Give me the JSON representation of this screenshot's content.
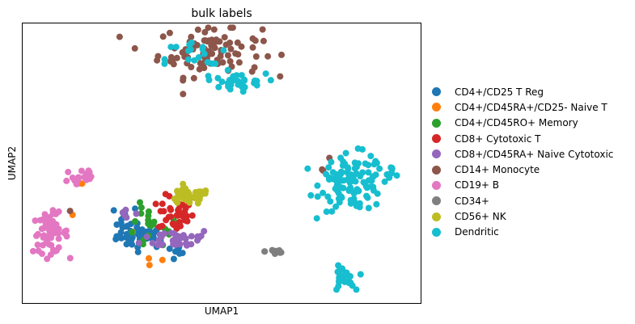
{
  "chart_data": {
    "type": "scatter",
    "title": "bulk labels",
    "xlabel": "UMAP1",
    "ylabel": "UMAP2",
    "grid": false,
    "xticks": "none",
    "yticks": "none",
    "xlim": [
      0,
      100
    ],
    "ylim": [
      0,
      100
    ],
    "legend_position": "right-outside",
    "series": [
      {
        "name": "CD4+/CD25 T Reg",
        "color": "#1f77b4",
        "clusters": [
          {
            "cx": 30,
            "cy": 24,
            "sx": 3.2,
            "sy": 2.2,
            "n": 45
          },
          {
            "cx": 26,
            "cy": 30,
            "sx": 1.5,
            "sy": 2.5,
            "n": 12
          },
          {
            "cx": 38,
            "cy": 18,
            "sx": 1.5,
            "sy": 1.5,
            "n": 8
          }
        ]
      },
      {
        "name": "CD4+/CD45RA+/CD25- Naive T",
        "color": "#ff7f0e",
        "clusters": [
          {
            "cx": 12.5,
            "cy": 31,
            "sx": 0.3,
            "sy": 0.3,
            "n": 1
          },
          {
            "cx": 33,
            "cy": 15,
            "sx": 1.2,
            "sy": 1.2,
            "n": 3
          },
          {
            "cx": 28,
            "cy": 25,
            "sx": 0.5,
            "sy": 0.5,
            "n": 1
          },
          {
            "cx": 14.5,
            "cy": 43,
            "sx": 0.4,
            "sy": 0.3,
            "n": 2
          }
        ]
      },
      {
        "name": "CD4+/CD45RO+ Memory",
        "color": "#2ca02c",
        "clusters": [
          {
            "cx": 32,
            "cy": 26,
            "sx": 4,
            "sy": 4,
            "n": 20
          },
          {
            "cx": 30,
            "cy": 34,
            "sx": 0.3,
            "sy": 0.3,
            "n": 1
          },
          {
            "cx": 54,
            "cy": 79,
            "sx": 0.3,
            "sy": 0.3,
            "n": 1
          }
        ]
      },
      {
        "name": "CD8+ Cytotoxic T",
        "color": "#d62728",
        "clusters": [
          {
            "cx": 38.5,
            "cy": 32,
            "sx": 2.2,
            "sy": 3.2,
            "n": 40
          }
        ]
      },
      {
        "name": "CD8+/CD45RA+ Naive Cytotoxic",
        "color": "#9467bd",
        "clusters": [
          {
            "cx": 39,
            "cy": 23,
            "sx": 4.5,
            "sy": 1.8,
            "n": 35
          },
          {
            "cx": 26,
            "cy": 32,
            "sx": 1.5,
            "sy": 1.5,
            "n": 5
          }
        ]
      },
      {
        "name": "CD14+ Monocyte",
        "color": "#8c564b",
        "clusters": [
          {
            "cx": 47,
            "cy": 90,
            "sx": 6.5,
            "sy": 4.5,
            "n": 95
          },
          {
            "cx": 77,
            "cy": 52,
            "sx": 0.3,
            "sy": 0.3,
            "n": 1
          },
          {
            "cx": 75.5,
            "cy": 48,
            "sx": 0.5,
            "sy": 0.5,
            "n": 2
          },
          {
            "cx": 11.5,
            "cy": 33,
            "sx": 0.3,
            "sy": 0.3,
            "n": 1
          }
        ]
      },
      {
        "name": "CD19+ B",
        "color": "#e377c2",
        "clusters": [
          {
            "cx": 7,
            "cy": 25,
            "sx": 2.2,
            "sy": 3.5,
            "n": 60
          },
          {
            "cx": 14.5,
            "cy": 45,
            "sx": 2.2,
            "sy": 2.2,
            "n": 18
          }
        ]
      },
      {
        "name": "CD34+",
        "color": "#7f7f7f",
        "clusters": [
          {
            "cx": 63.5,
            "cy": 18.5,
            "sx": 1.3,
            "sy": 0.8,
            "n": 12
          }
        ]
      },
      {
        "name": "CD56+ NK",
        "color": "#bcbd22",
        "clusters": [
          {
            "cx": 41.5,
            "cy": 38,
            "sx": 2.8,
            "sy": 1.4,
            "n": 40
          }
        ]
      },
      {
        "name": "Dendritic",
        "color": "#17becf",
        "clusters": [
          {
            "cx": 83,
            "cy": 43,
            "sx": 4,
            "sy": 5,
            "n": 110
          },
          {
            "cx": 92,
            "cy": 47,
            "sx": 1.8,
            "sy": 0.9,
            "n": 10
          },
          {
            "cx": 79,
            "cy": 46,
            "sx": 1.2,
            "sy": 1.2,
            "n": 6
          },
          {
            "cx": 80.5,
            "cy": 8.5,
            "sx": 1.4,
            "sy": 2.2,
            "n": 28
          },
          {
            "cx": 53,
            "cy": 79,
            "sx": 4,
            "sy": 1.5,
            "n": 30
          },
          {
            "cx": 44,
            "cy": 87,
            "sx": 4,
            "sy": 4,
            "n": 20
          }
        ]
      }
    ]
  }
}
